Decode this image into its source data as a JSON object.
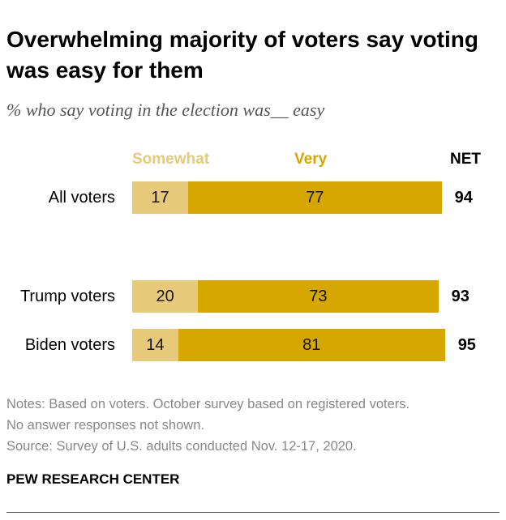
{
  "chart_data": {
    "type": "bar",
    "stacked": true,
    "orientation": "horizontal",
    "title": "Overwhelming majority of voters say voting was easy for them",
    "subtitle": "% who say voting in the election was__ easy",
    "categories": [
      "All voters",
      "Trump voters",
      "Biden voters"
    ],
    "series": [
      {
        "name": "Somewhat",
        "values": [
          17,
          20,
          14
        ],
        "color": "#E6C979"
      },
      {
        "name": "Very",
        "values": [
          77,
          73,
          81
        ],
        "color": "#D6A700"
      }
    ],
    "net_label": "NET",
    "net": [
      94,
      93,
      95
    ]
  },
  "notes": [
    "Notes: Based on voters. October survey based on registered voters.",
    "No answer responses not shown.",
    "Source: Survey of U.S. adults conducted Nov. 12-17, 2020."
  ],
  "logo": "PEW RESEARCH CENTER"
}
